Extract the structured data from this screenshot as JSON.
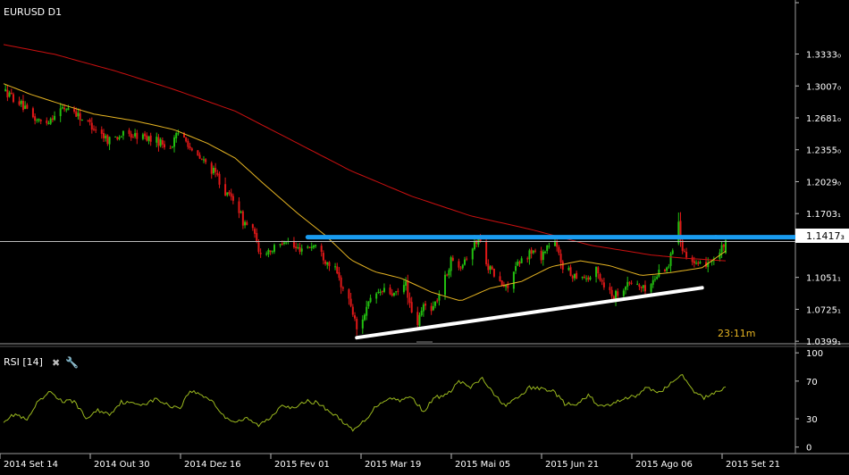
{
  "chart_data": [
    {
      "type": "candlestick",
      "title": "EURUSD D1",
      "price_axis": {
        "ticks": [
          {
            "label": "1.3333₀",
            "value": 1.3333
          },
          {
            "label": "1.3007₀",
            "value": 1.3007
          },
          {
            "label": "1.2681₀",
            "value": 1.2681
          },
          {
            "label": "1.2355₀",
            "value": 1.2355
          },
          {
            "label": "1.2029₀",
            "value": 1.2029
          },
          {
            "label": "1.1703₁",
            "value": 1.1703
          },
          {
            "label": "1.1051₁",
            "value": 1.1051
          },
          {
            "label": "1.0725₁",
            "value": 1.0725
          },
          {
            "label": "1.0399₁",
            "value": 1.0399
          }
        ],
        "ylim": [
          1.0373,
          1.3885
        ]
      },
      "current_price": {
        "label": "1.1417₃",
        "value": 1.1417
      },
      "countdown": "23:11m",
      "moving_average_long_color": "#cc1010",
      "moving_average_short_color": "#e6b422",
      "bull_color": "#22c010",
      "bear_color": "#e01818",
      "trendlines": [
        {
          "name": "resistance",
          "color": "#1a9cf0",
          "points": [
            [
              "2015-02-16",
              1.1462
            ],
            [
              "2015-09-12",
              1.1462
            ]
          ]
        },
        {
          "name": "support",
          "color": "#ffffff",
          "points": [
            [
              "2015-03-13",
              1.0435
            ],
            [
              "2015-09-05",
              1.0945
            ]
          ]
        }
      ]
    },
    {
      "type": "line",
      "title": "RSI [14]",
      "line_color": "#9ab81e",
      "ylim": [
        -5,
        103
      ],
      "yticks": [
        {
          "label": "100",
          "value": 100
        },
        {
          "label": "70",
          "value": 70
        },
        {
          "label": "30",
          "value": 30
        },
        {
          "label": "0",
          "value": 0
        }
      ]
    }
  ],
  "x_axis": {
    "ticks": [
      "2014 Set 14",
      "2014 Out 30",
      "2014 Dez 16",
      "2015 Fev 01",
      "2015 Mar 19",
      "2015 Mai 05",
      "2015 Jun 21",
      "2015 Ago 06",
      "2015 Set 21"
    ]
  },
  "price_anchors": [
    [
      "2014-09-14",
      1.296
    ],
    [
      "2014-09-22",
      1.284
    ],
    [
      "2014-09-28",
      1.269
    ],
    [
      "2014-10-05",
      1.262
    ],
    [
      "2014-10-12",
      1.276
    ],
    [
      "2014-10-18",
      1.279
    ],
    [
      "2014-10-24",
      1.267
    ],
    [
      "2014-10-30",
      1.259
    ],
    [
      "2014-11-06",
      1.246
    ],
    [
      "2014-11-14",
      1.251
    ],
    [
      "2014-11-24",
      1.249
    ],
    [
      "2014-12-02",
      1.244
    ],
    [
      "2014-12-08",
      1.238
    ],
    [
      "2014-12-12",
      1.252
    ],
    [
      "2014-12-16",
      1.248
    ],
    [
      "2014-12-19",
      1.232
    ],
    [
      "2014-12-26",
      1.222
    ],
    [
      "2015-01-01",
      1.208
    ],
    [
      "2015-01-06",
      1.188
    ],
    [
      "2015-01-10",
      1.186
    ],
    [
      "2015-01-14",
      1.162
    ],
    [
      "2015-01-19",
      1.155
    ],
    [
      "2015-01-22",
      1.13
    ],
    [
      "2015-01-27",
      1.133
    ],
    [
      "2015-02-01",
      1.135
    ],
    [
      "2015-02-04",
      1.145
    ],
    [
      "2015-02-10",
      1.134
    ],
    [
      "2015-02-16",
      1.137
    ],
    [
      "2015-02-20",
      1.138
    ],
    [
      "2015-02-25",
      1.123
    ],
    [
      "2015-03-01",
      1.117
    ],
    [
      "2015-03-05",
      1.098
    ],
    [
      "2015-03-10",
      1.077
    ],
    [
      "2015-03-13",
      1.052
    ],
    [
      "2015-03-18",
      1.073
    ],
    [
      "2015-03-22",
      1.088
    ],
    [
      "2015-03-27",
      1.091
    ],
    [
      "2015-04-02",
      1.087
    ],
    [
      "2015-04-07",
      1.099
    ],
    [
      "2015-04-10",
      1.066
    ],
    [
      "2015-04-13",
      1.058
    ],
    [
      "2015-04-16",
      1.076
    ],
    [
      "2015-04-21",
      1.075
    ],
    [
      "2015-04-25",
      1.092
    ],
    [
      "2015-04-30",
      1.122
    ],
    [
      "2015-05-05",
      1.119
    ],
    [
      "2015-05-10",
      1.133
    ],
    [
      "2015-05-14",
      1.145
    ],
    [
      "2015-05-19",
      1.117
    ],
    [
      "2015-05-24",
      1.101
    ],
    [
      "2015-05-28",
      1.094
    ],
    [
      "2015-06-02",
      1.115
    ],
    [
      "2015-06-06",
      1.124
    ],
    [
      "2015-06-10",
      1.132
    ],
    [
      "2015-06-15",
      1.127
    ],
    [
      "2015-06-18",
      1.137
    ],
    [
      "2015-06-22",
      1.139
    ],
    [
      "2015-06-26",
      1.117
    ],
    [
      "2015-06-30",
      1.108
    ],
    [
      "2015-07-05",
      1.108
    ],
    [
      "2015-07-09",
      1.104
    ],
    [
      "2015-07-13",
      1.112
    ],
    [
      "2015-07-17",
      1.098
    ],
    [
      "2015-07-22",
      1.086
    ],
    [
      "2015-07-27",
      1.096
    ],
    [
      "2015-08-01",
      1.101
    ],
    [
      "2015-08-06",
      1.093
    ],
    [
      "2015-08-10",
      1.098
    ],
    [
      "2015-08-14",
      1.111
    ],
    [
      "2015-08-19",
      1.118
    ],
    [
      "2015-08-24",
      1.159
    ],
    [
      "2015-08-26",
      1.136
    ],
    [
      "2015-08-31",
      1.121
    ],
    [
      "2015-09-03",
      1.115
    ],
    [
      "2015-09-06",
      1.119
    ],
    [
      "2015-09-09",
      1.123
    ],
    [
      "2015-09-13",
      1.126
    ],
    [
      "2015-09-17",
      1.142
    ]
  ],
  "spike_bars": [
    {
      "date": "2015-08-24",
      "high": 1.1714,
      "low": 1.138,
      "open": 1.14,
      "close": 1.162
    },
    {
      "date": "2015-09-17",
      "high": 1.1445,
      "low": 1.129,
      "open": 1.13,
      "close": 1.143
    }
  ],
  "ma_long_anchors": [
    [
      "2014-09-14",
      1.343
    ],
    [
      "2014-10-10",
      1.333
    ],
    [
      "2014-11-10",
      1.316
    ],
    [
      "2014-12-10",
      1.297
    ],
    [
      "2015-01-10",
      1.275
    ],
    [
      "2015-02-10",
      1.243
    ],
    [
      "2015-03-10",
      1.214
    ],
    [
      "2015-04-10",
      1.188
    ],
    [
      "2015-05-10",
      1.168
    ],
    [
      "2015-06-10",
      1.154
    ],
    [
      "2015-07-10",
      1.138
    ],
    [
      "2015-08-10",
      1.128
    ],
    [
      "2015-08-25",
      1.125
    ],
    [
      "2015-09-17",
      1.122
    ]
  ],
  "ma_short_anchors": [
    [
      "2014-09-14",
      1.303
    ],
    [
      "2014-09-28",
      1.292
    ],
    [
      "2014-10-15",
      1.281
    ],
    [
      "2014-10-30",
      1.272
    ],
    [
      "2014-11-20",
      1.265
    ],
    [
      "2014-12-10",
      1.256
    ],
    [
      "2014-12-27",
      1.242
    ],
    [
      "2015-01-10",
      1.227
    ],
    [
      "2015-01-25",
      1.2
    ],
    [
      "2015-02-10",
      1.172
    ],
    [
      "2015-02-25",
      1.148
    ],
    [
      "2015-03-10",
      1.123
    ],
    [
      "2015-03-22",
      1.111
    ],
    [
      "2015-04-05",
      1.104
    ],
    [
      "2015-04-20",
      1.09
    ],
    [
      "2015-05-05",
      1.081
    ],
    [
      "2015-05-20",
      1.094
    ],
    [
      "2015-06-05",
      1.101
    ],
    [
      "2015-06-20",
      1.116
    ],
    [
      "2015-07-05",
      1.122
    ],
    [
      "2015-07-20",
      1.117
    ],
    [
      "2015-08-05",
      1.107
    ],
    [
      "2015-08-20",
      1.11
    ],
    [
      "2015-09-05",
      1.115
    ],
    [
      "2015-09-17",
      1.132
    ]
  ],
  "rsi_anchors": [
    [
      "2014-09-14",
      28
    ],
    [
      "2014-09-20",
      35
    ],
    [
      "2014-09-26",
      28
    ],
    [
      "2014-10-01",
      46
    ],
    [
      "2014-10-08",
      59
    ],
    [
      "2014-10-14",
      48
    ],
    [
      "2014-10-20",
      49
    ],
    [
      "2014-10-26",
      30
    ],
    [
      "2014-11-01",
      39
    ],
    [
      "2014-11-07",
      35
    ],
    [
      "2014-11-13",
      48
    ],
    [
      "2014-11-19",
      46
    ],
    [
      "2014-11-25",
      46
    ],
    [
      "2014-12-01",
      51
    ],
    [
      "2014-12-07",
      44
    ],
    [
      "2014-12-13",
      42
    ],
    [
      "2014-12-18",
      60
    ],
    [
      "2014-12-23",
      56
    ],
    [
      "2014-12-29",
      50
    ],
    [
      "2015-01-04",
      33
    ],
    [
      "2015-01-10",
      27
    ],
    [
      "2015-01-16",
      30
    ],
    [
      "2015-01-22",
      23
    ],
    [
      "2015-01-28",
      31
    ],
    [
      "2015-02-03",
      46
    ],
    [
      "2015-02-09",
      40
    ],
    [
      "2015-02-15",
      49
    ],
    [
      "2015-02-21",
      47
    ],
    [
      "2015-02-27",
      38
    ],
    [
      "2015-03-05",
      29
    ],
    [
      "2015-03-11",
      17
    ],
    [
      "2015-03-17",
      28
    ],
    [
      "2015-03-23",
      44
    ],
    [
      "2015-03-29",
      52
    ],
    [
      "2015-04-04",
      50
    ],
    [
      "2015-04-10",
      53
    ],
    [
      "2015-04-16",
      38
    ],
    [
      "2015-04-22",
      53
    ],
    [
      "2015-04-28",
      55
    ],
    [
      "2015-05-04",
      70
    ],
    [
      "2015-05-10",
      63
    ],
    [
      "2015-05-16",
      73
    ],
    [
      "2015-05-22",
      55
    ],
    [
      "2015-05-28",
      44
    ],
    [
      "2015-06-03",
      52
    ],
    [
      "2015-06-09",
      63
    ],
    [
      "2015-06-15",
      62
    ],
    [
      "2015-06-21",
      60
    ],
    [
      "2015-06-27",
      46
    ],
    [
      "2015-07-03",
      44
    ],
    [
      "2015-07-09",
      55
    ],
    [
      "2015-07-15",
      43
    ],
    [
      "2015-07-21",
      45
    ],
    [
      "2015-07-27",
      52
    ],
    [
      "2015-08-02",
      54
    ],
    [
      "2015-08-08",
      63
    ],
    [
      "2015-08-14",
      58
    ],
    [
      "2015-08-20",
      67
    ],
    [
      "2015-08-25",
      78
    ],
    [
      "2015-08-31",
      60
    ],
    [
      "2015-09-06",
      52
    ],
    [
      "2015-09-12",
      59
    ],
    [
      "2015-09-17",
      63
    ]
  ]
}
